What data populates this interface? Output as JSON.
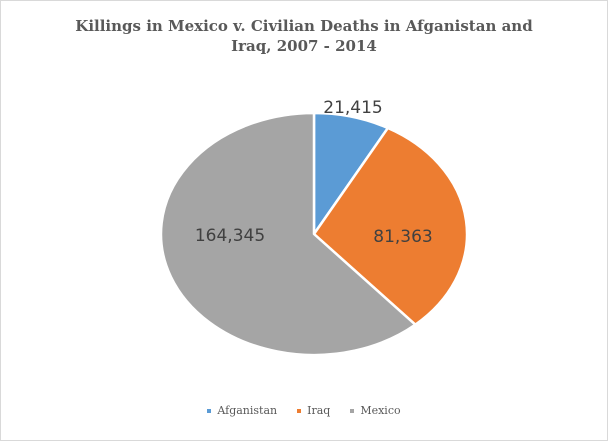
{
  "chart_data": {
    "type": "pie",
    "title_lines": [
      "Killings in Mexico v. Civilian Deaths in Afganistan and",
      "Iraq, 2007 - 2014"
    ],
    "slices": [
      {
        "name": "Afganistan",
        "value": 21415,
        "label": "21,415",
        "color": "#5b9bd5"
      },
      {
        "name": "Iraq",
        "value": 81363,
        "label": "81,363",
        "color": "#ed7d31"
      },
      {
        "name": "Mexico",
        "value": 164345,
        "label": "164,345",
        "color": "#a5a5a5"
      }
    ],
    "legend_position": "bottom",
    "start_angle": "12 o'clock, clockwise"
  }
}
